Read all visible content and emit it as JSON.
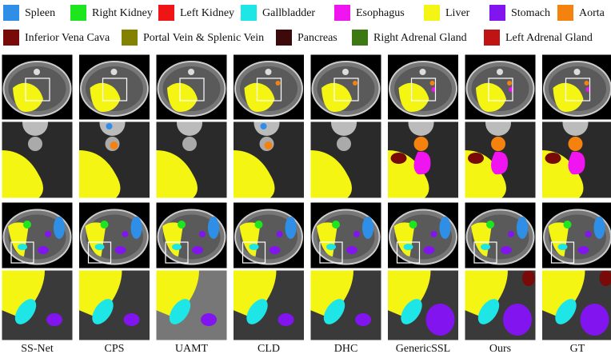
{
  "legend": {
    "items": [
      {
        "label": "Spleen",
        "color": "#2f8fe6"
      },
      {
        "label": "Right Kidney",
        "color": "#1ee61e"
      },
      {
        "label": "Left Kidney",
        "color": "#f01414"
      },
      {
        "label": "Gallbladder",
        "color": "#1ee6e6"
      },
      {
        "label": "Esophagus",
        "color": "#f014f0"
      },
      {
        "label": "Liver",
        "color": "#f5f514"
      },
      {
        "label": "Stomach",
        "color": "#8214f0"
      },
      {
        "label": "Aorta",
        "color": "#f5820f"
      },
      {
        "label": "Inferior Vena Cava",
        "color": "#780a0a"
      },
      {
        "label": "Portal Vein & Splenic Vein",
        "color": "#828200"
      },
      {
        "label": "Pancreas",
        "color": "#3c0a0a"
      },
      {
        "label": "Right Adrenal Gland",
        "color": "#3c7814"
      },
      {
        "label": "Left Adrenal Gland",
        "color": "#c01414"
      }
    ]
  },
  "columns": [
    "SS-Net",
    "CPS",
    "UAMT",
    "CLD",
    "DHC",
    "GenericSSL",
    "Ours",
    "GT"
  ]
}
